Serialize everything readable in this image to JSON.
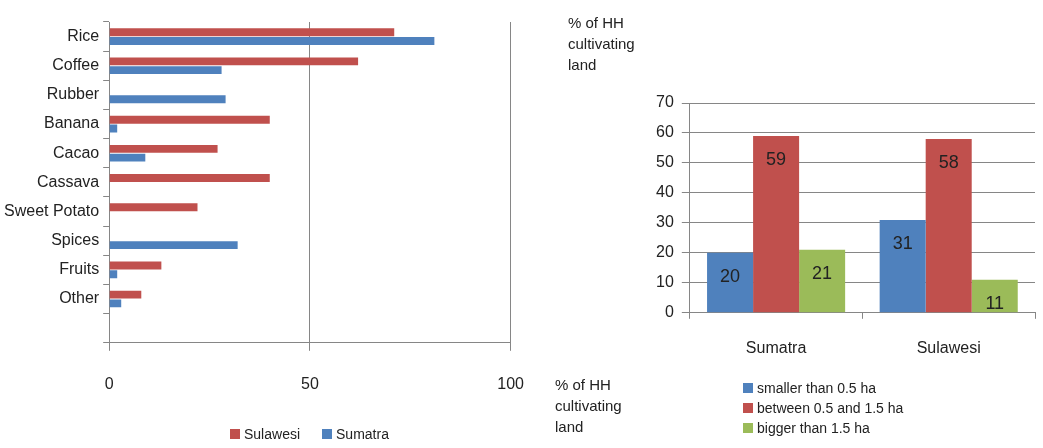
{
  "chart_data": [
    {
      "type": "bar",
      "orientation": "horizontal",
      "xlabel": "% of HH cultivating land",
      "categories": [
        "Rice",
        "Coffee",
        "Rubber",
        "Banana",
        "Cacao",
        "Cassava",
        "Sweet Potato",
        "Spices",
        "Fruits",
        "Other",
        null
      ],
      "series": [
        {
          "name": "Sulawesi",
          "color": "#c0504d",
          "values": [
            71,
            62,
            null,
            40,
            27,
            40,
            22,
            null,
            13,
            8,
            null
          ]
        },
        {
          "name": "Sumatra",
          "color": "#4f81bd",
          "values": [
            81,
            28,
            29,
            2,
            9,
            null,
            null,
            32,
            2,
            3,
            null
          ]
        }
      ],
      "xlim": [
        0,
        100
      ],
      "xticks": [
        0,
        50,
        100
      ],
      "grid": "x",
      "legend": "bottom"
    },
    {
      "type": "bar",
      "ylabel": "% of HH cultivating land",
      "categories": [
        "Sumatra",
        "Sulawesi"
      ],
      "series": [
        {
          "name": "smaller than 0.5 ha",
          "color": "#4f81bd",
          "values": [
            20,
            31
          ]
        },
        {
          "name": "between 0.5 and 1.5 ha",
          "color": "#c0504d",
          "values": [
            59,
            58
          ]
        },
        {
          "name": "bigger than 1.5 ha",
          "color": "#9bbb59",
          "values": [
            21,
            11
          ]
        }
      ],
      "ylim": [
        0,
        70
      ],
      "yticks": [
        0,
        10,
        20,
        30,
        40,
        50,
        60,
        70
      ],
      "grid": "y",
      "data_labels": true,
      "legend": "bottom"
    }
  ]
}
